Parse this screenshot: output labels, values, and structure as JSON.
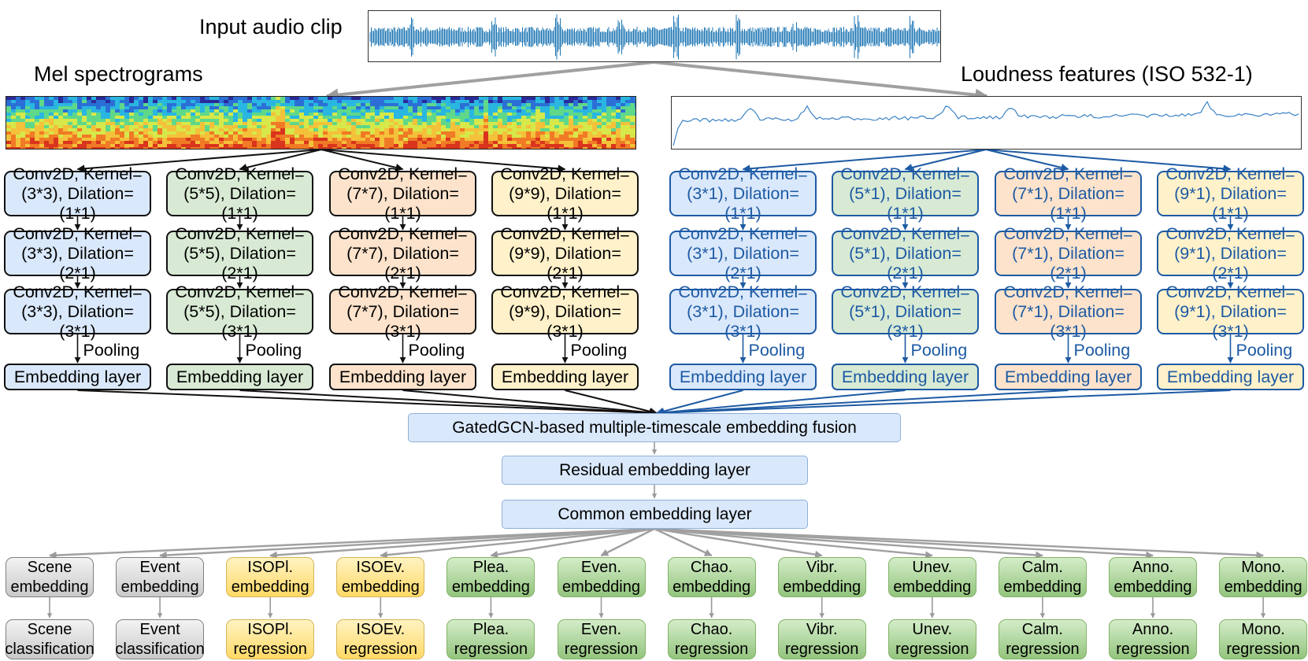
{
  "header": {
    "input_label": "Input audio clip",
    "mel_label": "Mel spectrograms",
    "loudness_label": "Loudness features (ISO 532-1)"
  },
  "mel_branch": {
    "pooling_label": "Pooling",
    "embedding_label": "Embedding layer",
    "columns": [
      {
        "conv": [
          "Conv2D, Kernel=\n(3*3), Dilation=(1*1)",
          "Conv2D, Kernel=\n(3*3), Dilation=(2*1)",
          "Conv2D, Kernel=\n(3*3), Dilation=(3*1)"
        ]
      },
      {
        "conv": [
          "Conv2D, Kernel=\n(5*5), Dilation=(1*1)",
          "Conv2D, Kernel=\n(5*5), Dilation=(2*1)",
          "Conv2D, Kernel=\n(5*5), Dilation=(3*1)"
        ]
      },
      {
        "conv": [
          "Conv2D, Kernel=\n(7*7), Dilation=(1*1)",
          "Conv2D, Kernel=\n(7*7), Dilation=(2*1)",
          "Conv2D, Kernel=\n(7*7), Dilation=(3*1)"
        ]
      },
      {
        "conv": [
          "Conv2D, Kernel=\n(9*9), Dilation=(1*1)",
          "Conv2D, Kernel=\n(9*9), Dilation=(2*1)",
          "Conv2D, Kernel=\n(9*9), Dilation=(3*1)"
        ]
      }
    ]
  },
  "loudness_branch": {
    "pooling_label": "Pooling",
    "embedding_label": "Embedding layer",
    "columns": [
      {
        "conv": [
          "Conv2D, Kernel=\n(3*1), Dilation=(1*1)",
          "Conv2D, Kernel=\n(3*1), Dilation=(2*1)",
          "Conv2D, Kernel=\n(3*1), Dilation=(3*1)"
        ]
      },
      {
        "conv": [
          "Conv2D, Kernel=\n(5*1), Dilation=(1*1)",
          "Conv2D, Kernel=\n(5*1), Dilation=(2*1)",
          "Conv2D, Kernel=\n(5*1), Dilation=(3*1)"
        ]
      },
      {
        "conv": [
          "Conv2D, Kernel=\n(7*1), Dilation=(1*1)",
          "Conv2D, Kernel=\n(7*1), Dilation=(2*1)",
          "Conv2D, Kernel=\n(7*1), Dilation=(3*1)"
        ]
      },
      {
        "conv": [
          "Conv2D, Kernel=\n(9*1), Dilation=(1*1)",
          "Conv2D, Kernel=\n(9*1), Dilation=(2*1)",
          "Conv2D, Kernel=\n(9*1), Dilation=(3*1)"
        ]
      }
    ]
  },
  "fusion": {
    "gated": "GatedGCN-based multiple-timescale embedding fusion",
    "residual": "Residual embedding layer",
    "common": "Common embedding layer"
  },
  "tasks": [
    {
      "embedding": "Scene\nembedding",
      "output": "Scene\nclassification",
      "color": "gray"
    },
    {
      "embedding": "Event\nembedding",
      "output": "Event\nclassification",
      "color": "gray"
    },
    {
      "embedding": "ISOPl.\nembedding",
      "output": "ISOPl.\nregression",
      "color": "yellow"
    },
    {
      "embedding": "ISOEv.\nembedding",
      "output": "ISOEv.\nregression",
      "color": "yellow"
    },
    {
      "embedding": "Plea.\nembedding",
      "output": "Plea.\nregression",
      "color": "green"
    },
    {
      "embedding": "Even.\nembedding",
      "output": "Even.\nregression",
      "color": "green"
    },
    {
      "embedding": "Chao.\nembedding",
      "output": "Chao.\nregression",
      "color": "green"
    },
    {
      "embedding": "Vibr.\nembedding",
      "output": "Vibr.\nregression",
      "color": "green"
    },
    {
      "embedding": "Unev.\nembedding",
      "output": "Unev.\nregression",
      "color": "green"
    },
    {
      "embedding": "Calm.\nembedding",
      "output": "Calm.\nregression",
      "color": "green"
    },
    {
      "embedding": "Anno.\nembedding",
      "output": "Anno.\nregression",
      "color": "green"
    },
    {
      "embedding": "Mono.\nembedding",
      "output": "Mono.\nregression",
      "color": "green"
    }
  ],
  "colors": {
    "branch_blue": "#1d5aa3",
    "arrow_gray": "#a0a0a0",
    "column_fills": [
      "#dae8fb",
      "#d8ead4",
      "#fde3cc",
      "#fff1ca"
    ]
  }
}
